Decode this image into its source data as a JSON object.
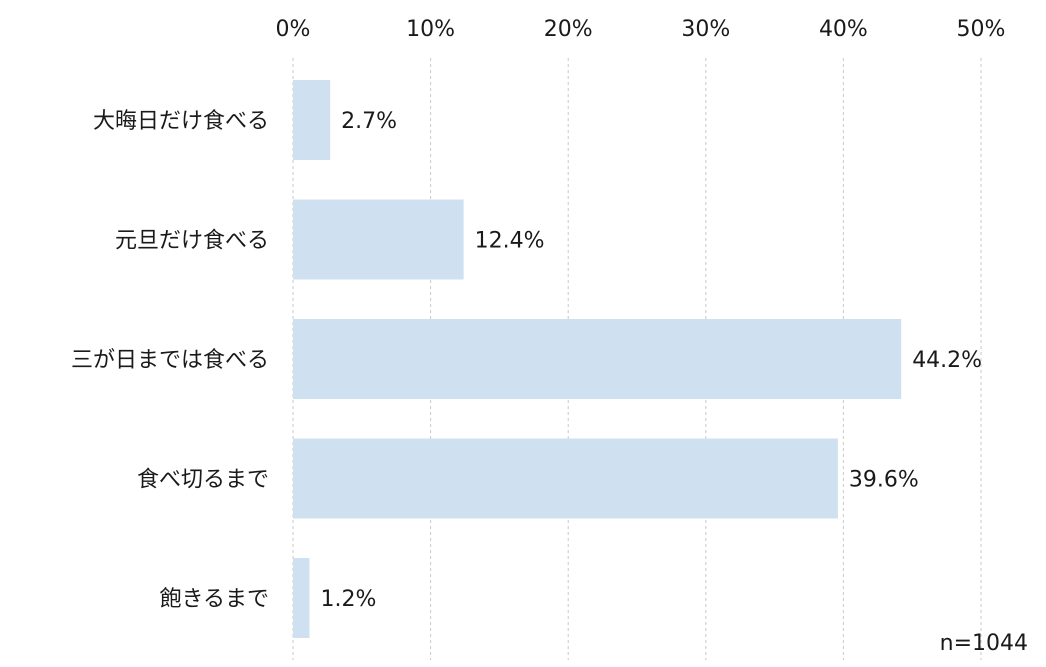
{
  "chart_data": {
    "type": "bar",
    "orientation": "horizontal",
    "categories": [
      "大晦日だけ食べる",
      "元旦だけ食べる",
      "三が日までは食べる",
      "食べ切るまで",
      "飽きるまで"
    ],
    "values": [
      2.7,
      12.4,
      44.2,
      39.6,
      1.2
    ],
    "value_labels": [
      "2.7%",
      "12.4%",
      "44.2%",
      "39.6%",
      "1.2%"
    ],
    "x_ticks": [
      0,
      10,
      20,
      30,
      40,
      50
    ],
    "x_tick_labels": [
      "0%",
      "10%",
      "20%",
      "30%",
      "40%",
      "50%"
    ],
    "xlim": [
      0,
      50
    ],
    "x_axis_position": "top",
    "grid": "vertical-dashed",
    "bar_color": "#cfe0f1",
    "note": "n=1044"
  }
}
